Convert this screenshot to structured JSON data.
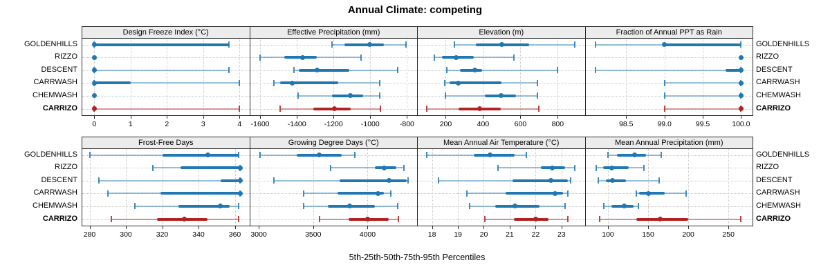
{
  "title": "Annual Climate: competing",
  "caption": "5th-25th-50th-75th-95th Percentiles",
  "colors": {
    "site_default": "#1f77b4",
    "site_highlight": "#b22222",
    "strip_bg": "#ececec",
    "panel_border": "#2b2b2b",
    "gridline": "#c8c8c8"
  },
  "chart_data": {
    "type": "dotplot",
    "percentiles": [
      5,
      25,
      50,
      75,
      95
    ],
    "legend_note": "5th-25th-50th-75th-95th Percentiles",
    "sites": [
      {
        "label": "GOLDENHILLS",
        "emphasis": false
      },
      {
        "label": "RIZZO",
        "emphasis": false
      },
      {
        "label": "DESCENT",
        "emphasis": false
      },
      {
        "label": "CARRWASH",
        "emphasis": false
      },
      {
        "label": "CHEMWASH",
        "emphasis": false
      },
      {
        "label": "CARRIZO",
        "emphasis": true
      }
    ],
    "panels": [
      {
        "title": "Design Freeze Index (°C)",
        "row": 0,
        "col": 0,
        "axis_min": -0.33,
        "axis_max": 4.27,
        "ticks": [
          0,
          1,
          2,
          3,
          4
        ],
        "tick_labels": [
          "0",
          "1",
          "2",
          "3",
          "4"
        ],
        "series": [
          [
            0,
            0,
            0,
            3.7,
            3.7
          ],
          [
            0,
            0,
            0,
            0,
            0
          ],
          [
            0,
            0,
            0,
            0,
            3.7
          ],
          [
            0,
            0,
            0,
            1,
            4
          ],
          [
            0,
            0,
            0,
            0,
            0
          ],
          [
            0,
            0,
            0,
            0,
            4
          ]
        ]
      },
      {
        "title": "Effective Precipitation (mm)",
        "row": 0,
        "col": 1,
        "axis_min": -1655,
        "axis_max": -745,
        "ticks": [
          -1600,
          -1400,
          -1200,
          -1000,
          -800
        ],
        "tick_labels": [
          "-1600",
          "-1400",
          "-1200",
          "-1000",
          "-800"
        ],
        "series": [
          [
            -1210,
            -1140,
            -1005,
            -925,
            -805
          ],
          [
            -1600,
            -1470,
            -1370,
            -1290,
            -1050
          ],
          [
            -1415,
            -1390,
            -1290,
            -1115,
            -850
          ],
          [
            -1525,
            -1490,
            -1425,
            -1175,
            -950
          ],
          [
            -1395,
            -1210,
            -1110,
            -1040,
            -950
          ],
          [
            -1490,
            -1310,
            -1195,
            -1105,
            -945
          ]
        ]
      },
      {
        "title": "Elevation (m)",
        "row": 0,
        "col": 2,
        "axis_min": 50,
        "axis_max": 945,
        "ticks": [
          200,
          400,
          600,
          800
        ],
        "tick_labels": [
          "200",
          "400",
          "600",
          "800"
        ],
        "series": [
          [
            245,
            360,
            500,
            645,
            890
          ],
          [
            140,
            180,
            255,
            350,
            565
          ],
          [
            205,
            275,
            355,
            395,
            800
          ],
          [
            195,
            220,
            265,
            500,
            690
          ],
          [
            200,
            410,
            495,
            575,
            690
          ],
          [
            100,
            270,
            380,
            495,
            700
          ]
        ]
      },
      {
        "title": "Fraction of Annual PPT as Rain",
        "row": 0,
        "col": 3,
        "axis_min": 97.97,
        "axis_max": 100.15,
        "ticks": [
          98.5,
          99.0,
          99.5,
          100.0
        ],
        "tick_labels": [
          "98.5",
          "99.0",
          "99.5",
          "100.0"
        ],
        "series": [
          [
            98.1,
            99.0,
            99.0,
            100,
            100
          ],
          [
            100,
            100,
            100,
            100,
            100
          ],
          [
            98.1,
            99.8,
            100,
            100,
            100
          ],
          [
            99.0,
            100,
            100,
            100,
            100
          ],
          [
            99.0,
            100,
            100,
            100,
            100
          ],
          [
            99.0,
            100,
            100,
            100,
            100
          ]
        ]
      },
      {
        "title": "Frost-Free Days",
        "row": 1,
        "col": 0,
        "axis_min": 276,
        "axis_max": 368,
        "ticks": [
          280,
          300,
          320,
          340,
          360
        ],
        "tick_labels": [
          "280",
          "300",
          "320",
          "340",
          "360"
        ],
        "series": [
          [
            280,
            320,
            345,
            362,
            362
          ],
          [
            315,
            330,
            363,
            363,
            363
          ],
          [
            285,
            352,
            363,
            363,
            363
          ],
          [
            290,
            319,
            363,
            363,
            363
          ],
          [
            305,
            329,
            352,
            357,
            362
          ],
          [
            292,
            317,
            332,
            345,
            362
          ]
        ]
      },
      {
        "title": "Growing Degree Days (°C)",
        "row": 1,
        "col": 1,
        "axis_min": 2920,
        "axis_max": 4455,
        "ticks": [
          3000,
          3500,
          4000
        ],
        "tick_labels": [
          "3000",
          "3500",
          "4000"
        ],
        "series": [
          [
            3015,
            3350,
            3555,
            3760,
            3880
          ],
          [
            3660,
            4065,
            4155,
            4265,
            4335
          ],
          [
            3140,
            3740,
            4200,
            4360,
            4370
          ],
          [
            3410,
            3725,
            4095,
            4150,
            4215
          ],
          [
            3410,
            3635,
            3835,
            4070,
            4275
          ],
          [
            3560,
            3825,
            4000,
            4195,
            4285
          ]
        ]
      },
      {
        "title": "Mean Annual Air Temperature (°C)",
        "row": 1,
        "col": 2,
        "axis_min": 17.45,
        "axis_max": 23.9,
        "ticks": [
          18,
          19,
          20,
          21,
          22,
          23
        ],
        "tick_labels": [
          "18",
          "19",
          "20",
          "21",
          "22",
          "23"
        ],
        "series": [
          [
            17.8,
            19.6,
            20.25,
            21.2,
            21.65
          ],
          [
            20.55,
            22.2,
            22.65,
            23.15,
            23.5
          ],
          [
            18.25,
            21.1,
            22.6,
            23.25,
            23.35
          ],
          [
            19.35,
            20.85,
            22.75,
            23.05,
            23.25
          ],
          [
            19.45,
            20.45,
            21.2,
            22.15,
            23.15
          ],
          [
            20.05,
            21.15,
            22.0,
            22.5,
            23.25
          ]
        ]
      },
      {
        "title": "Mean Annual Precipitation (mm)",
        "row": 1,
        "col": 3,
        "axis_min": 72,
        "axis_max": 280,
        "ticks": [
          100,
          150,
          200,
          250
        ],
        "tick_labels": [
          "100",
          "150",
          "200",
          "250"
        ],
        "series": [
          [
            100,
            111,
            133,
            147,
            166
          ],
          [
            85,
            94,
            105,
            126,
            145
          ],
          [
            88,
            97,
            106,
            122,
            164
          ],
          [
            135,
            139,
            150,
            171,
            197
          ],
          [
            95,
            104,
            120,
            132,
            138
          ],
          [
            90,
            135,
            165,
            200,
            265
          ]
        ]
      }
    ]
  }
}
